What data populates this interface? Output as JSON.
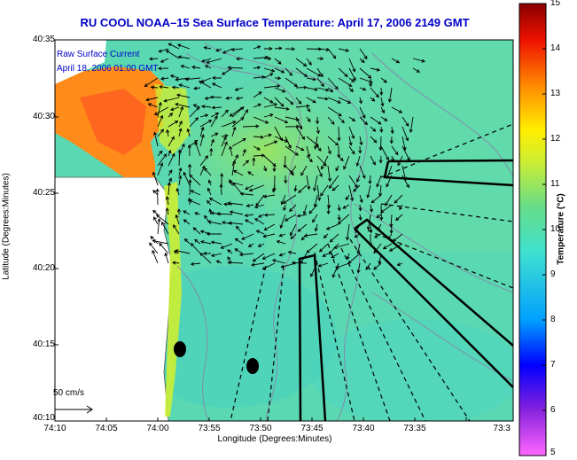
{
  "title": "RU COOL  NOAA–15  Sea Surface Temperature:  April 17, 2006 2149 GMT",
  "overlay": {
    "line1": "Raw Surface Current",
    "line2": "April 18, 2006 01:00 GMT"
  },
  "axes": {
    "xlabel": "Longitude (Degrees:Minutes)",
    "ylabel": "Latitude (Degrees:Minutes)",
    "xticks": [
      "74:10",
      "74:05",
      "74:00",
      "73:55",
      "73:50",
      "73:45",
      "73:40",
      "73:35",
      "73:3"
    ],
    "yticks": [
      "40:35",
      "40:30",
      "40:25",
      "40:20",
      "40:15",
      "40:10"
    ]
  },
  "scale": {
    "label": "50 cm/s"
  },
  "colorbar": {
    "label": "Temperature (°C)",
    "ticks": [
      "15",
      "14",
      "13",
      "12",
      "11",
      "10",
      "9",
      "8",
      "7",
      "6",
      "5"
    ],
    "min": 5,
    "max": 15
  },
  "colors": {
    "title": "#0000c8",
    "water": "#59d9b0",
    "warm": "#ff8c1a",
    "land": "#ffffff"
  }
}
